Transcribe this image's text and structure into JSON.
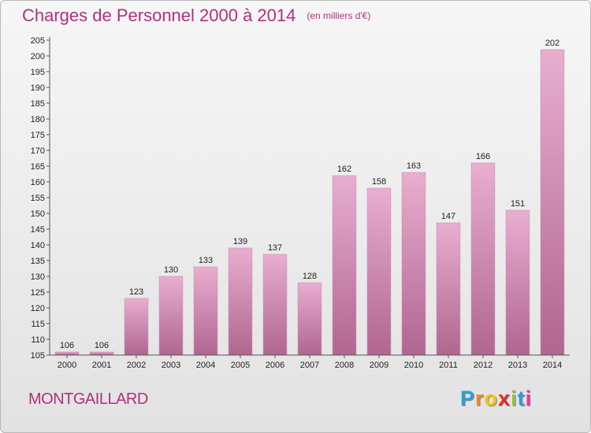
{
  "title": "Charges de Personnel 2000 à 2014",
  "unit_note": "(en milliers d'€)",
  "place": "MONTGAILLARD",
  "logo": {
    "letters": [
      "P",
      "r",
      "o",
      "x",
      "i",
      "t",
      "i"
    ],
    "colors": [
      "#2b9fd8",
      "#f08a1c",
      "#f5c211",
      "#e22a2a",
      "#8dc63f",
      "#2b9fd8",
      "#e8389b"
    ]
  },
  "colors": {
    "title": "#b0307e",
    "bar_top": "#e8aed0",
    "bar_bottom": "#b0668f"
  },
  "chart_data": {
    "type": "bar",
    "title": "Charges de Personnel 2000 à 2014",
    "categories": [
      "2000",
      "2001",
      "2002",
      "2003",
      "2004",
      "2005",
      "2006",
      "2007",
      "2008",
      "2009",
      "2010",
      "2011",
      "2012",
      "2013",
      "2014"
    ],
    "values": [
      106,
      106,
      123,
      130,
      133,
      139,
      137,
      128,
      162,
      158,
      163,
      147,
      166,
      151,
      202
    ],
    "ylim": [
      105,
      205
    ],
    "yticks": [
      105,
      110,
      115,
      120,
      125,
      130,
      135,
      140,
      145,
      150,
      155,
      160,
      165,
      170,
      175,
      180,
      185,
      190,
      195,
      200,
      205
    ],
    "grid": false,
    "legend": "none"
  }
}
